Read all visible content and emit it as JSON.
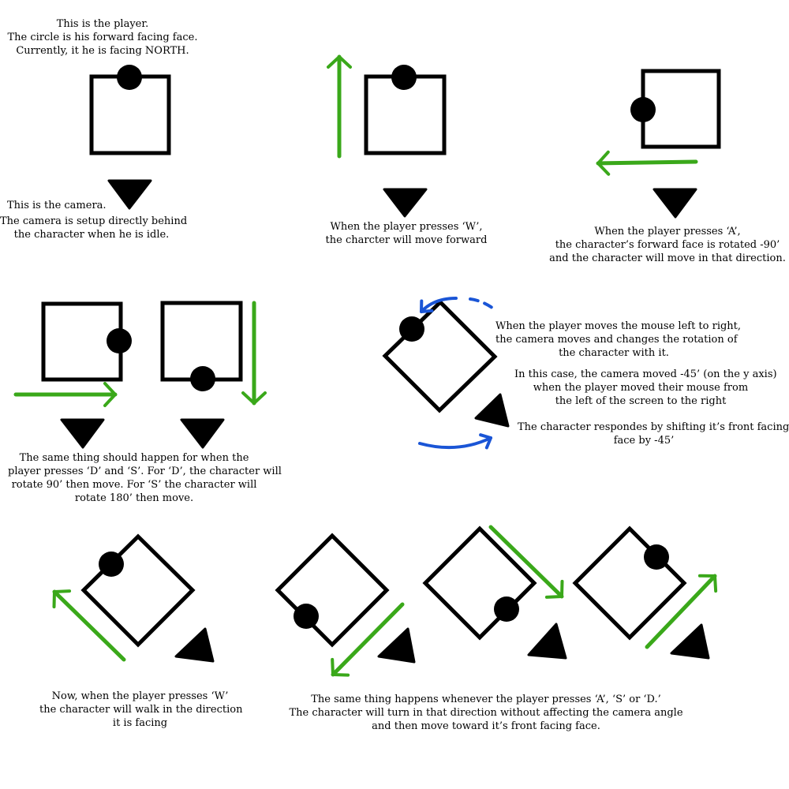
{
  "colors": {
    "ink": "#000000",
    "move_arrow": "#3aa81a",
    "mouse_arrow": "#1a55d6",
    "background": "#ffffff"
  },
  "captions": {
    "player_intro": [
      "This is the player.",
      "The circle is his forward facing face.",
      "Currently, it he is facing NORTH."
    ],
    "camera_intro_title": "This is the camera.",
    "camera_intro_body": [
      "The camera is setup directly behind",
      "the character when he is idle."
    ],
    "press_w": [
      "When the player presses ‘W’,",
      "the charcter will move forward"
    ],
    "press_a": [
      "When the player presses ‘A’,",
      "the character’s forward face is rotated -90’",
      "and the character will move in that direction."
    ],
    "press_d_s": [
      "The same thing should happen for when the",
      "player presses ‘D’ and ‘S’. For ‘D’, the character will",
      "rotate 90’ then move. For ‘S’ the character will",
      "rotate 180’ then move."
    ],
    "mouse_move": [
      "When the player moves the mouse left to right,",
      "the camera moves and changes the rotation of",
      "the character with it."
    ],
    "camera_rotated": [
      "In this case, the camera moved -45’ (on the y axis)",
      "when the player moved their mouse from",
      "the left of the screen to the right"
    ],
    "character_responds": [
      "The character respondes by shifting it’s front facing",
      "face by -45’"
    ],
    "rotated_w": [
      "Now, when the player presses ‘W’",
      "the character will walk in the direction",
      "it is facing"
    ],
    "rotated_asd": [
      "The same thing happens whenever the player presses ‘A’, ‘S’ or ‘D.’",
      "The character will turn in that direction without affecting the camera angle",
      "and then move toward it’s front facing face."
    ]
  }
}
